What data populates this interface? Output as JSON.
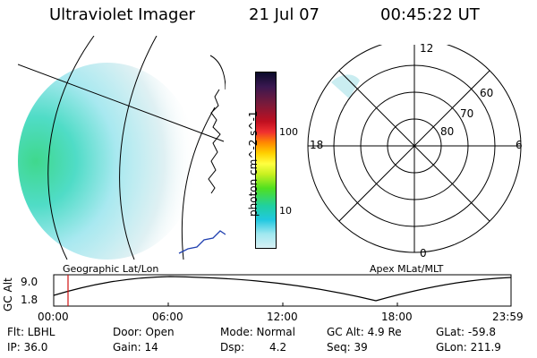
{
  "header": {
    "instrument": "Ultraviolet Imager",
    "date": "21 Jul 07",
    "time": "00:45:22 UT"
  },
  "colorbar": {
    "label": "photon cm^-2 s^-1",
    "ticks": [
      "100",
      "10"
    ],
    "colors": [
      "#0a0a2a",
      "#3a1850",
      "#7a1a3a",
      "#c01020",
      "#f03030",
      "#ff8a00",
      "#ffd000",
      "#ffff40",
      "#c8f020",
      "#50e020",
      "#20d0a0",
      "#20c8e0",
      "#a0e8f0",
      "#d8f0f4"
    ]
  },
  "left_panel": {
    "caption": "Geographic Lat/Lon"
  },
  "right_panel": {
    "caption": "Apex MLat/MLT",
    "mlt_labels": [
      "12",
      "18",
      "6",
      "0"
    ],
    "mlat_labels": [
      "60",
      "70",
      "80"
    ]
  },
  "altitude_plot": {
    "ylabel": "GC Alt",
    "yticks": [
      "9.0",
      "1.8"
    ],
    "xticks": [
      "00:00",
      "06:00",
      "12:00",
      "18:00",
      "23:59"
    ]
  },
  "info": {
    "row1": {
      "flt": "Flt: LBHL",
      "door": "Door: Open",
      "mode": "Mode: Normal",
      "gcalt": "GC Alt: 4.9 Re",
      "glat": "GLat: -59.8"
    },
    "row2": {
      "ip": "IP: 36.0",
      "gain": "Gain: 14",
      "dsp_label": "Dsp:",
      "dsp_value": "4.2",
      "seq": "Seq: 39",
      "glon": "GLon: 211.9"
    }
  }
}
